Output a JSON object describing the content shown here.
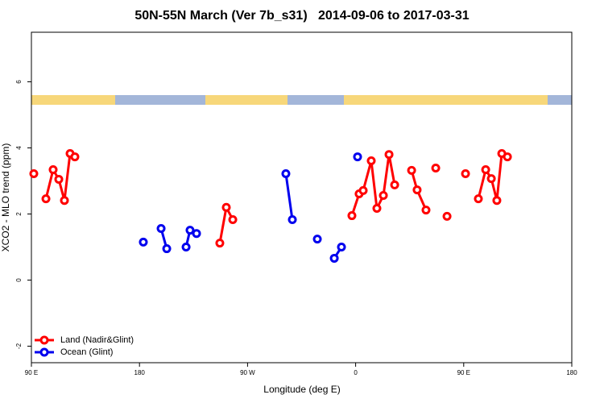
{
  "chart_data": {
    "type": "line",
    "title": "50N-55N March (Ver 7b_s31)   2014-09-06 to 2017-03-31",
    "x_label": "Longitude (deg E)",
    "y_label": "XCO2 - MLO trend (ppm)",
    "xlim": [
      90,
      540
    ],
    "xticks": [
      {
        "value": 90,
        "label": "90 E"
      },
      180,
      {
        "value": 270,
        "label": "90 W"
      },
      {
        "value": 360,
        "label": "0"
      },
      {
        "value": 450,
        "label": "90 E"
      },
      {
        "value": 540,
        "label": "180"
      }
    ],
    "ylim": [
      -2.5,
      7.5
    ],
    "yticks": [
      -2,
      0,
      2,
      4,
      6
    ],
    "legend": "bottom-left",
    "series": [
      {
        "name": "Land (Nadir&Glint)",
        "color": "#ff0000",
        "x": [
          92.0,
          null,
          102.1,
          108.1,
          112.8,
          117.5,
          122.2,
          126.2,
          null,
          246.9,
          252.3,
          257.7,
          null,
          356.9,
          362.9,
          366.3,
          373.0,
          377.7,
          383.1,
          387.8,
          392.5,
          null,
          406.6,
          411.2,
          418.6,
          null,
          426.7,
          null,
          436.1,
          null,
          451.5,
          null,
          462.2,
          468.3,
          473.0,
          477.6,
          481.7,
          486.4
        ],
        "values": [
          3.22,
          null,
          2.46,
          3.34,
          3.05,
          2.41,
          3.83,
          3.73,
          null,
          1.12,
          2.2,
          1.83,
          null,
          1.95,
          2.61,
          2.71,
          3.61,
          2.17,
          2.56,
          3.8,
          2.88,
          null,
          3.32,
          2.73,
          2.12,
          null,
          3.39,
          null,
          1.93,
          null,
          3.22,
          null,
          2.46,
          3.34,
          3.07,
          2.41,
          3.83,
          3.73
        ]
      },
      {
        "name": "Ocean (Glint)",
        "color": "#0000ee",
        "x": [
          183.2,
          null,
          198.0,
          202.7,
          null,
          218.8,
          222.1,
          227.5,
          null,
          301.9,
          307.3,
          null,
          328.1,
          null,
          342.2,
          348.2,
          null,
          361.6
        ],
        "values": [
          1.15,
          null,
          1.56,
          0.95,
          null,
          1.0,
          1.51,
          1.41,
          null,
          3.22,
          1.83,
          null,
          1.24,
          null,
          0.66,
          1.0,
          null,
          3.73
        ]
      }
    ]
  }
}
